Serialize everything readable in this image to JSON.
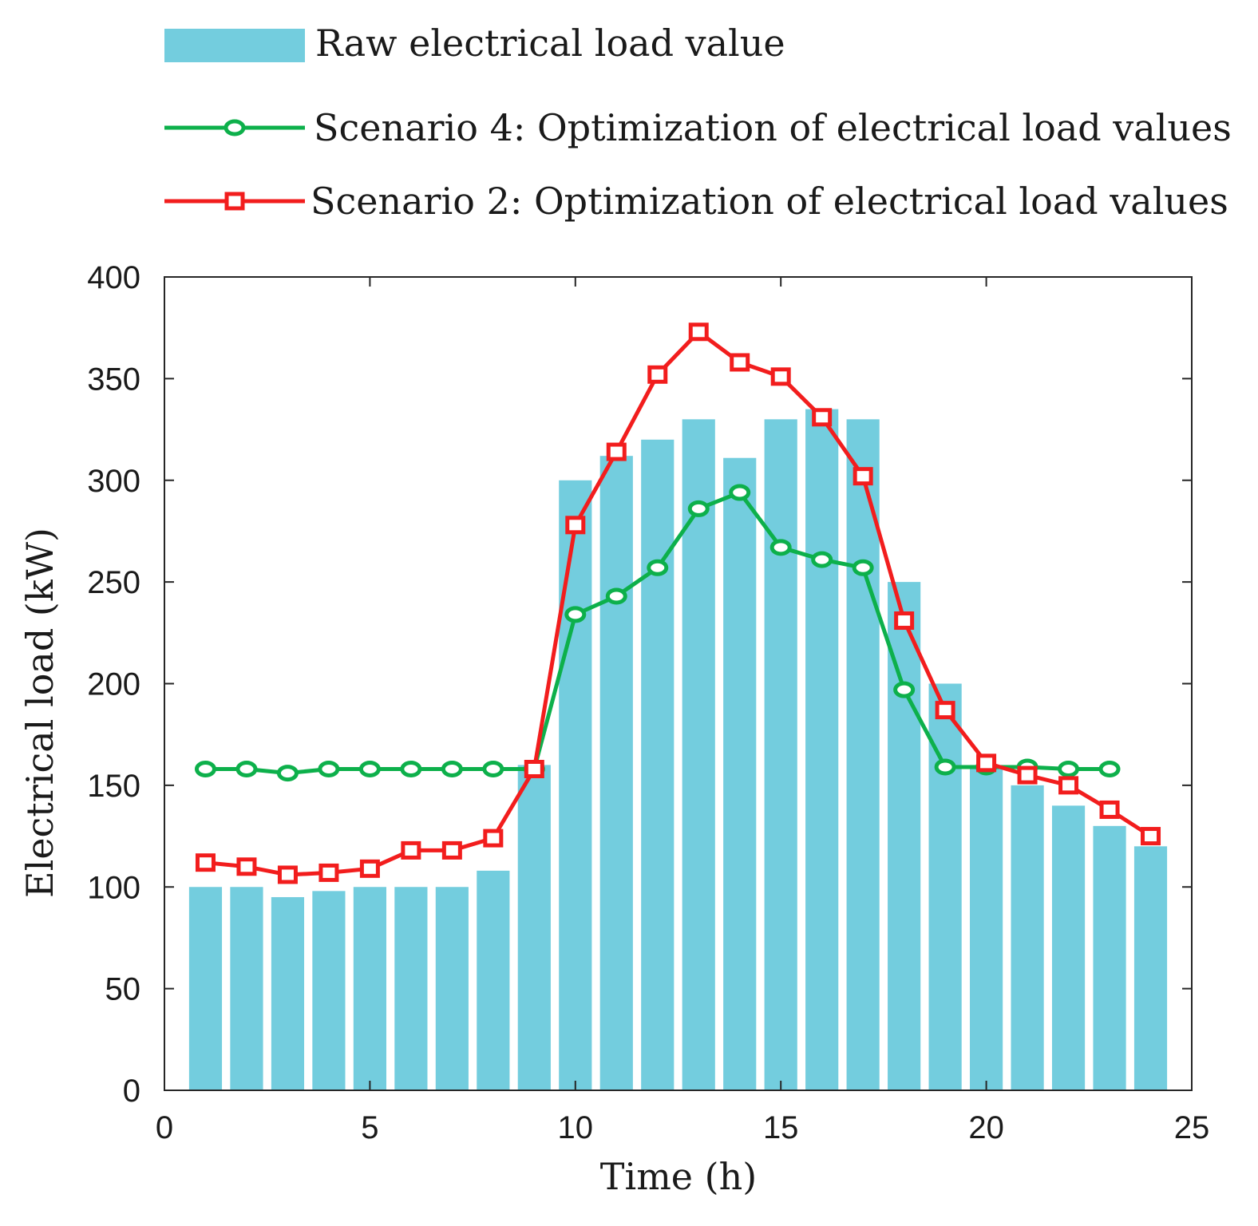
{
  "chart_data": {
    "type": "bar",
    "xlabel": "Time (h)",
    "ylabel": "Electrical load (kW)",
    "xlim": [
      0,
      25
    ],
    "ylim": [
      0,
      400
    ],
    "x_ticks": [
      0,
      5,
      10,
      15,
      20,
      25
    ],
    "y_ticks": [
      0,
      50,
      100,
      150,
      200,
      250,
      300,
      350,
      400
    ],
    "grid": false,
    "legend_position": "top",
    "bars": {
      "name": "Raw electrical load value",
      "color": "#73CDDE",
      "x": [
        1,
        2,
        3,
        4,
        5,
        6,
        7,
        8,
        9,
        10,
        11,
        12,
        13,
        14,
        15,
        16,
        17,
        18,
        19,
        20,
        21,
        22,
        23,
        24
      ],
      "values": [
        100,
        100,
        95,
        98,
        100,
        100,
        100,
        108,
        160,
        300,
        312,
        320,
        330,
        311,
        330,
        335,
        330,
        250,
        200,
        160,
        150,
        140,
        130,
        120
      ]
    },
    "series": [
      {
        "name": "Scenario 4: Optimization of electrical load values",
        "color": "#0DB04B",
        "marker": "circle",
        "x": [
          1,
          2,
          3,
          4,
          5,
          6,
          7,
          8,
          9,
          10,
          11,
          12,
          13,
          14,
          15,
          16,
          17,
          18,
          19,
          20,
          21,
          22,
          23
        ],
        "values": [
          158,
          158,
          156,
          158,
          158,
          158,
          158,
          158,
          158,
          234,
          243,
          257,
          286,
          294,
          267,
          261,
          257,
          197,
          159,
          159,
          159,
          158,
          158
        ]
      },
      {
        "name": "Scenario 2: Optimization of electrical load values",
        "color": "#F21D1D",
        "marker": "square",
        "x": [
          1,
          2,
          3,
          4,
          5,
          6,
          7,
          8,
          9,
          10,
          11,
          12,
          13,
          14,
          15,
          16,
          17,
          18,
          19,
          20,
          21,
          22,
          23,
          24
        ],
        "values": [
          112,
          110,
          106,
          107,
          109,
          118,
          118,
          124,
          158,
          278,
          314,
          352,
          373,
          358,
          351,
          331,
          302,
          231,
          187,
          161,
          155,
          150,
          138,
          125
        ]
      }
    ]
  }
}
